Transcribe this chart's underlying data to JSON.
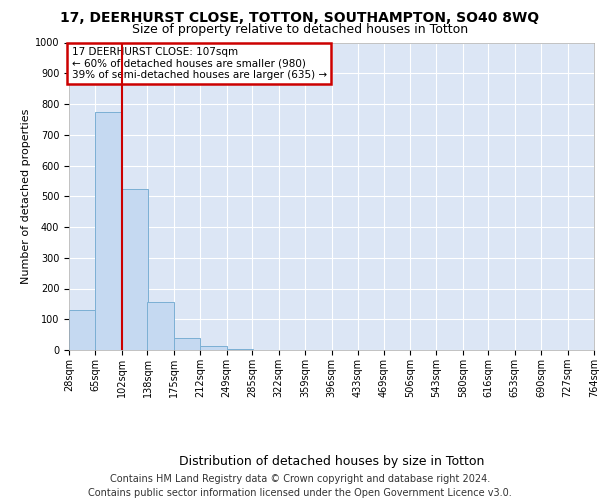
{
  "title1": "17, DEERHURST CLOSE, TOTTON, SOUTHAMPTON, SO40 8WQ",
  "title2": "Size of property relative to detached houses in Totton",
  "xlabel": "Distribution of detached houses by size in Totton",
  "ylabel": "Number of detached properties",
  "footnote1": "Contains HM Land Registry data © Crown copyright and database right 2024.",
  "footnote2": "Contains public sector information licensed under the Open Government Licence v3.0.",
  "annotation_line1": "17 DEERHURST CLOSE: 107sqm",
  "annotation_line2": "← 60% of detached houses are smaller (980)",
  "annotation_line3": "39% of semi-detached houses are larger (635) →",
  "bar_color": "#c5d9f1",
  "bar_edge_color": "#7bafd4",
  "vline_color": "#cc0000",
  "bins": [
    28,
    65,
    102,
    138,
    175,
    212,
    249,
    285,
    322,
    359,
    396,
    433,
    469,
    506,
    543,
    580,
    616,
    653,
    690,
    727,
    764
  ],
  "bin_labels": [
    "28sqm",
    "65sqm",
    "102sqm",
    "138sqm",
    "175sqm",
    "212sqm",
    "249sqm",
    "285sqm",
    "322sqm",
    "359sqm",
    "396sqm",
    "433sqm",
    "469sqm",
    "506sqm",
    "543sqm",
    "580sqm",
    "616sqm",
    "653sqm",
    "690sqm",
    "727sqm",
    "764sqm"
  ],
  "bar_heights": [
    130,
    775,
    525,
    155,
    40,
    12,
    3,
    1,
    0,
    0,
    0,
    0,
    0,
    0,
    0,
    0,
    0,
    0,
    0,
    0
  ],
  "ylim": [
    0,
    1000
  ],
  "yticks": [
    0,
    100,
    200,
    300,
    400,
    500,
    600,
    700,
    800,
    900,
    1000
  ],
  "background_color": "#dce6f5",
  "grid_color": "#ffffff",
  "annotation_box_edge": "#cc0000",
  "vline_bin_index": 2,
  "title1_fontsize": 10,
  "title2_fontsize": 9,
  "ylabel_fontsize": 8,
  "xlabel_fontsize": 9,
  "tick_fontsize": 7,
  "footnote_fontsize": 7
}
